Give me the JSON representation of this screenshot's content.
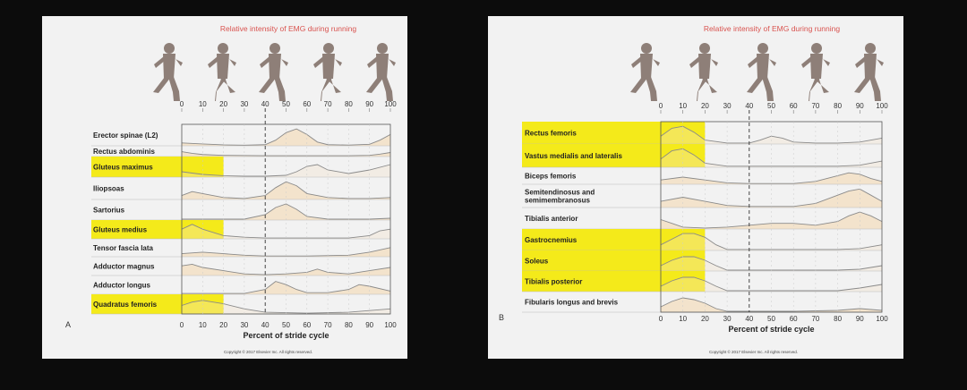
{
  "colors": {
    "background": "#0c0c0c",
    "panel": "#f2f2f2",
    "highlight": "#f4ea1a",
    "curve_fill": "#f3e3cc",
    "curve_line": "#8a8a8a",
    "title": "#d9534f",
    "runner": "#8e7f78"
  },
  "figure_title": "Relative intensity of EMG during running",
  "copyright": "Copyright © 2017 Elsevier Inc. All rights reserved.",
  "runner_icon": "running-figure-icon",
  "chart_data": [
    {
      "type": "area",
      "panel_label": "A",
      "title": "Relative intensity of EMG during running",
      "xlabel": "Percent of stride cycle",
      "ylabel": "",
      "xlim": [
        0,
        100
      ],
      "x_ticks": [
        0,
        10,
        20,
        30,
        40,
        50,
        60,
        70,
        80,
        90,
        100
      ],
      "dashed_reference_x": 40,
      "highlight_x_range": [
        0,
        20
      ],
      "series": [
        {
          "name": "Erector spinae (L2)",
          "highlighted": false,
          "x": [
            0,
            10,
            20,
            30,
            40,
            45,
            50,
            55,
            60,
            65,
            70,
            80,
            90,
            95,
            100
          ],
          "y": [
            0.15,
            0.1,
            0.05,
            0.03,
            0.06,
            0.3,
            0.7,
            0.9,
            0.6,
            0.2,
            0.06,
            0.04,
            0.08,
            0.3,
            0.6
          ]
        },
        {
          "name": "Rectus abdominis",
          "highlighted": false,
          "x": [
            0,
            5,
            10,
            20,
            40,
            60,
            80,
            90,
            95,
            100
          ],
          "y": [
            0.6,
            0.4,
            0.25,
            0.15,
            0.1,
            0.1,
            0.1,
            0.15,
            0.3,
            0.5
          ]
        },
        {
          "name": "Gluteus maximus",
          "highlighted": true,
          "x": [
            0,
            10,
            20,
            30,
            40,
            50,
            55,
            60,
            65,
            70,
            80,
            90,
            100
          ],
          "y": [
            0.3,
            0.15,
            0.08,
            0.05,
            0.05,
            0.1,
            0.3,
            0.6,
            0.7,
            0.4,
            0.2,
            0.4,
            0.7
          ]
        },
        {
          "name": "Iliopsoas",
          "highlighted": false,
          "x": [
            0,
            5,
            10,
            20,
            30,
            40,
            45,
            50,
            55,
            60,
            70,
            80,
            90,
            100
          ],
          "y": [
            0.2,
            0.4,
            0.3,
            0.1,
            0.05,
            0.2,
            0.6,
            0.9,
            0.7,
            0.3,
            0.1,
            0.05,
            0.05,
            0.1
          ]
        },
        {
          "name": "Sartorius",
          "highlighted": false,
          "x": [
            0,
            10,
            20,
            30,
            40,
            45,
            50,
            55,
            60,
            70,
            80,
            90,
            100
          ],
          "y": [
            0.05,
            0.05,
            0.05,
            0.05,
            0.3,
            0.7,
            0.9,
            0.6,
            0.2,
            0.05,
            0.05,
            0.05,
            0.1
          ]
        },
        {
          "name": "Gluteus medius",
          "highlighted": true,
          "x": [
            0,
            5,
            10,
            20,
            30,
            40,
            60,
            80,
            90,
            95,
            100
          ],
          "y": [
            0.6,
            0.9,
            0.6,
            0.2,
            0.1,
            0.05,
            0.05,
            0.05,
            0.2,
            0.5,
            0.6
          ]
        },
        {
          "name": "Tensor fascia lata",
          "highlighted": false,
          "x": [
            0,
            10,
            20,
            30,
            40,
            60,
            80,
            90,
            100
          ],
          "y": [
            0.2,
            0.3,
            0.2,
            0.1,
            0.05,
            0.05,
            0.1,
            0.3,
            0.6
          ]
        },
        {
          "name": "Adductor magnus",
          "highlighted": false,
          "x": [
            0,
            5,
            10,
            20,
            30,
            40,
            50,
            60,
            65,
            70,
            80,
            90,
            100
          ],
          "y": [
            0.6,
            0.7,
            0.5,
            0.3,
            0.1,
            0.05,
            0.1,
            0.2,
            0.4,
            0.2,
            0.1,
            0.3,
            0.5
          ]
        },
        {
          "name": "Adductor longus",
          "highlighted": false,
          "x": [
            0,
            10,
            20,
            30,
            40,
            45,
            50,
            55,
            60,
            70,
            80,
            85,
            90,
            100
          ],
          "y": [
            0.05,
            0.05,
            0.05,
            0.05,
            0.3,
            0.8,
            0.6,
            0.3,
            0.1,
            0.1,
            0.3,
            0.6,
            0.5,
            0.2
          ]
        },
        {
          "name": "Quadratus femoris",
          "highlighted": true,
          "x": [
            0,
            5,
            10,
            20,
            30,
            40,
            60,
            80,
            90,
            100
          ],
          "y": [
            0.5,
            0.7,
            0.8,
            0.6,
            0.3,
            0.1,
            0.05,
            0.1,
            0.2,
            0.3
          ]
        }
      ]
    },
    {
      "type": "area",
      "panel_label": "B",
      "title": "Relative intensity of EMG during running",
      "xlabel": "Percent of stride cycle",
      "ylabel": "",
      "xlim": [
        0,
        100
      ],
      "x_ticks": [
        0,
        10,
        20,
        30,
        40,
        50,
        60,
        70,
        80,
        90,
        100
      ],
      "dashed_reference_x": 40,
      "highlight_x_range": [
        0,
        20
      ],
      "series": [
        {
          "name": "Rectus femoris",
          "highlighted": true,
          "x": [
            0,
            5,
            10,
            15,
            20,
            30,
            40,
            45,
            50,
            55,
            60,
            70,
            80,
            90,
            100
          ],
          "y": [
            0.4,
            0.8,
            0.9,
            0.6,
            0.2,
            0.05,
            0.05,
            0.2,
            0.4,
            0.3,
            0.1,
            0.05,
            0.05,
            0.1,
            0.3
          ]
        },
        {
          "name": "Vastus medialis and lateralis",
          "highlighted": true,
          "x": [
            0,
            5,
            10,
            15,
            20,
            30,
            50,
            70,
            80,
            90,
            100
          ],
          "y": [
            0.4,
            0.8,
            0.9,
            0.6,
            0.2,
            0.05,
            0.05,
            0.05,
            0.05,
            0.1,
            0.3
          ]
        },
        {
          "name": "Biceps femoris",
          "highlighted": false,
          "x": [
            0,
            10,
            20,
            30,
            40,
            60,
            70,
            80,
            85,
            90,
            95,
            100
          ],
          "y": [
            0.3,
            0.5,
            0.3,
            0.1,
            0.05,
            0.05,
            0.2,
            0.6,
            0.8,
            0.7,
            0.4,
            0.2
          ]
        },
        {
          "name": "Semitendinosus and semimembranosus",
          "highlighted": false,
          "x": [
            0,
            10,
            20,
            30,
            40,
            60,
            70,
            80,
            85,
            90,
            95,
            100
          ],
          "y": [
            0.3,
            0.5,
            0.3,
            0.1,
            0.05,
            0.05,
            0.2,
            0.6,
            0.8,
            0.9,
            0.6,
            0.3
          ]
        },
        {
          "name": "Tibialis anterior",
          "highlighted": false,
          "x": [
            0,
            5,
            10,
            20,
            30,
            40,
            50,
            60,
            70,
            80,
            85,
            90,
            95,
            100
          ],
          "y": [
            0.5,
            0.3,
            0.1,
            0.05,
            0.1,
            0.2,
            0.3,
            0.3,
            0.2,
            0.4,
            0.7,
            0.9,
            0.7,
            0.4
          ]
        },
        {
          "name": "Gastrocnemius",
          "highlighted": true,
          "x": [
            0,
            5,
            10,
            15,
            20,
            25,
            30,
            40,
            60,
            80,
            90,
            100
          ],
          "y": [
            0.3,
            0.6,
            0.9,
            0.9,
            0.7,
            0.3,
            0.05,
            0.05,
            0.05,
            0.05,
            0.1,
            0.3
          ]
        },
        {
          "name": "Soleus",
          "highlighted": true,
          "x": [
            0,
            5,
            10,
            15,
            20,
            25,
            30,
            40,
            60,
            80,
            90,
            100
          ],
          "y": [
            0.3,
            0.6,
            0.8,
            0.8,
            0.6,
            0.3,
            0.05,
            0.05,
            0.05,
            0.05,
            0.1,
            0.3
          ]
        },
        {
          "name": "Tibialis posterior",
          "highlighted": true,
          "x": [
            0,
            5,
            10,
            15,
            20,
            25,
            30,
            40,
            60,
            80,
            90,
            100
          ],
          "y": [
            0.3,
            0.6,
            0.8,
            0.8,
            0.6,
            0.3,
            0.05,
            0.05,
            0.05,
            0.05,
            0.2,
            0.4
          ]
        },
        {
          "name": "Fibularis longus and brevis",
          "highlighted": false,
          "x": [
            0,
            5,
            10,
            15,
            20,
            25,
            30,
            40,
            60,
            80,
            90,
            100
          ],
          "y": [
            0.3,
            0.6,
            0.8,
            0.7,
            0.5,
            0.2,
            0.05,
            0.05,
            0.05,
            0.1,
            0.2,
            0.1
          ]
        }
      ]
    }
  ]
}
